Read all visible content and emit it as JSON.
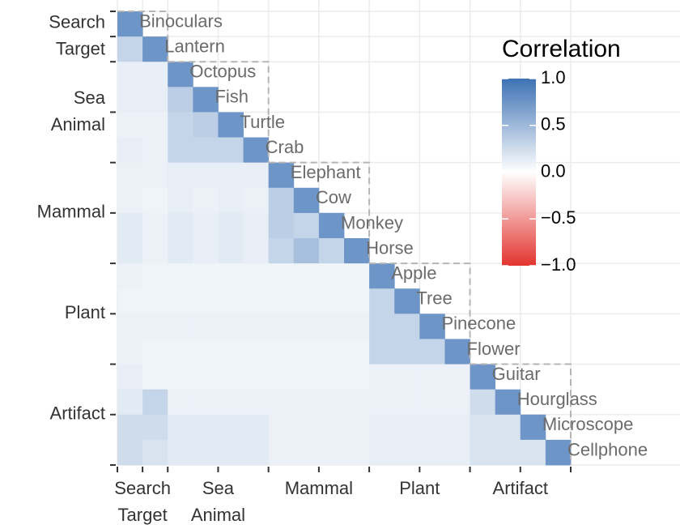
{
  "chart_data": {
    "type": "heatmap",
    "groups": [
      {
        "label": [
          "Search",
          "Target"
        ],
        "items": [
          "Binoculars",
          "Lantern"
        ]
      },
      {
        "label": [
          "Sea",
          "Animal"
        ],
        "items": [
          "Octopus",
          "Fish",
          "Turtle",
          "Crab"
        ]
      },
      {
        "label": [
          "Mammal"
        ],
        "items": [
          "Elephant",
          "Cow",
          "Monkey",
          "Horse"
        ]
      },
      {
        "label": [
          "Plant"
        ],
        "items": [
          "Apple",
          "Tree",
          "Pinecone",
          "Flower"
        ]
      },
      {
        "label": [
          "Artifact"
        ],
        "items": [
          "Guitar",
          "Hourglass",
          "Microscope",
          "Cellphone"
        ]
      }
    ],
    "values": [
      [
        0.75
      ],
      [
        0.3,
        0.75
      ],
      [
        0.12,
        0.12,
        0.75
      ],
      [
        0.12,
        0.12,
        0.35,
        0.75
      ],
      [
        0.1,
        0.1,
        0.3,
        0.35,
        0.75
      ],
      [
        0.12,
        0.1,
        0.3,
        0.3,
        0.3,
        0.75
      ],
      [
        0.1,
        0.1,
        0.12,
        0.12,
        0.12,
        0.12,
        0.75
      ],
      [
        0.1,
        0.08,
        0.12,
        0.1,
        0.12,
        0.1,
        0.35,
        0.75
      ],
      [
        0.15,
        0.1,
        0.15,
        0.12,
        0.15,
        0.12,
        0.35,
        0.3,
        0.75
      ],
      [
        0.15,
        0.1,
        0.15,
        0.12,
        0.15,
        0.12,
        0.3,
        0.45,
        0.3,
        0.75
      ],
      [
        0.1,
        0.08,
        0.08,
        0.08,
        0.08,
        0.08,
        0.08,
        0.08,
        0.08,
        0.08,
        0.75
      ],
      [
        0.08,
        0.08,
        0.08,
        0.08,
        0.08,
        0.08,
        0.08,
        0.08,
        0.08,
        0.08,
        0.3,
        0.75
      ],
      [
        0.1,
        0.1,
        0.1,
        0.1,
        0.1,
        0.1,
        0.1,
        0.1,
        0.1,
        0.1,
        0.3,
        0.3,
        0.75
      ],
      [
        0.1,
        0.08,
        0.08,
        0.08,
        0.08,
        0.08,
        0.08,
        0.08,
        0.08,
        0.08,
        0.3,
        0.3,
        0.3,
        0.75
      ],
      [
        0.12,
        0.08,
        0.08,
        0.08,
        0.08,
        0.08,
        0.08,
        0.08,
        0.08,
        0.08,
        0.1,
        0.1,
        0.1,
        0.1,
        0.75
      ],
      [
        0.15,
        0.3,
        0.1,
        0.1,
        0.1,
        0.1,
        0.1,
        0.1,
        0.1,
        0.1,
        0.1,
        0.1,
        0.1,
        0.1,
        0.25,
        0.75
      ],
      [
        0.25,
        0.25,
        0.15,
        0.15,
        0.15,
        0.15,
        0.1,
        0.1,
        0.1,
        0.1,
        0.12,
        0.12,
        0.12,
        0.12,
        0.2,
        0.2,
        0.75
      ],
      [
        0.25,
        0.2,
        0.15,
        0.15,
        0.15,
        0.15,
        0.1,
        0.1,
        0.1,
        0.1,
        0.12,
        0.12,
        0.12,
        0.12,
        0.2,
        0.2,
        0.2,
        0.75
      ]
    ],
    "legend": {
      "title": "Correlation",
      "lim": [
        -1,
        1
      ],
      "ticks": [
        {
          "value": 1,
          "label": "1.0"
        },
        {
          "value": 0.5,
          "label": "0.5"
        },
        {
          "value": 0,
          "label": "0.0"
        },
        {
          "value": -0.5,
          "label": "−0.5"
        },
        {
          "value": -1,
          "label": "−1.0"
        }
      ],
      "colors": {
        "low": "#e3342f",
        "mid": "#ffffff",
        "high": "#3d72b4"
      }
    }
  }
}
